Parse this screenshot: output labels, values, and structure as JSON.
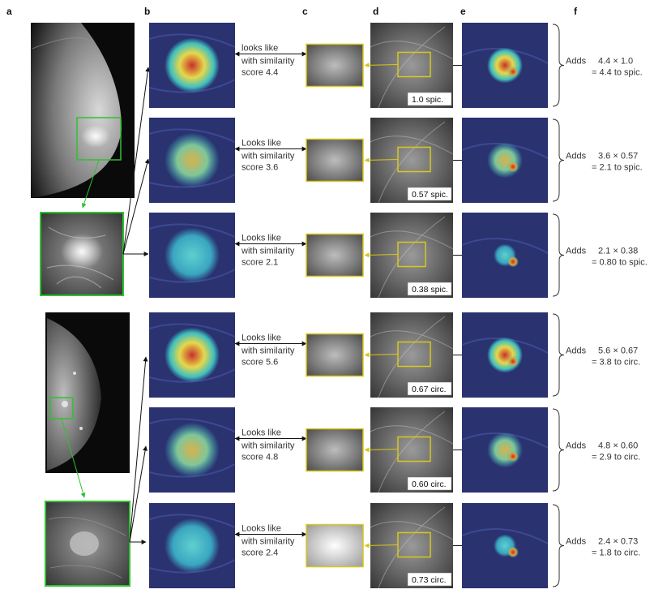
{
  "panel_labels": [
    "a",
    "b",
    "c",
    "d",
    "e",
    "f"
  ],
  "top_group": {
    "rows": [
      {
        "looks": "looks like",
        "sim": "with similarity",
        "score": "score 4.4",
        "tag": "1.0 spic.",
        "adds": "Adds",
        "f1": "4.4 × 1.0",
        "f2": "= 4.4 to spic.",
        "heat": "hot"
      },
      {
        "looks": "Looks like",
        "sim": "with similarity",
        "score": "score 3.6",
        "tag": "0.57 spic.",
        "adds": "Adds",
        "f1": "3.6 × 0.57",
        "f2": "= 2.1 to spic.",
        "heat": "warm"
      },
      {
        "looks": "Looks like",
        "sim": "with similarity",
        "score": "score 2.1",
        "tag": "0.38 spic.",
        "adds": "Adds",
        "f1": "2.1 × 0.38",
        "f2": "= 0.80 to spic.",
        "heat": "cool"
      }
    ]
  },
  "bottom_group": {
    "rows": [
      {
        "looks": "Looks like",
        "sim": "with similarity",
        "score": "score 5.6",
        "tag": "0.67 circ.",
        "adds": "Adds",
        "f1": "5.6 × 0.67",
        "f2": "= 3.8 to circ.",
        "heat": "hot"
      },
      {
        "looks": "Looks like",
        "sim": "with similarity",
        "score": "score 4.8",
        "tag": "0.60 circ.",
        "adds": "Adds",
        "f1": "4.8 × 0.60",
        "f2": "= 2.9 to circ.",
        "heat": "warm"
      },
      {
        "looks": "Looks like",
        "sim": "with similarity",
        "score": "score 2.4",
        "tag": "0.73 circ.",
        "adds": "Adds",
        "f1": "2.4 × 0.73",
        "f2": "= 1.8 to circ.",
        "heat": "cool"
      }
    ]
  },
  "colors": {
    "roi_green": "#2fc12f",
    "proto_yellow": "#d8c81a",
    "heat_bg": "#2a3270",
    "heat_cyan": "#3fc0c0",
    "heat_yellow": "#e6d84a",
    "heat_red": "#c8302a"
  }
}
